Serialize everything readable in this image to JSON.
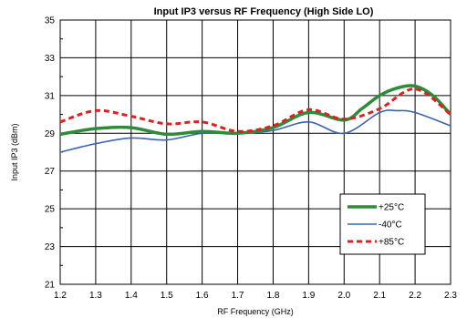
{
  "chart_data": {
    "type": "line",
    "title": "Input IP3 versus RF Frequency (High Side LO)",
    "xlabel": "RF Frequency (GHz)",
    "ylabel": "Input IP3 (dBm)",
    "xlim": [
      1.2,
      2.3
    ],
    "ylim": [
      21,
      35
    ],
    "xticks": [
      "1.2",
      "1.3",
      "1.4",
      "1.5",
      "1.6",
      "1.7",
      "1.8",
      "1.9",
      "2.0",
      "2.1",
      "2.2",
      "2.3"
    ],
    "yticks": [
      "21",
      "23",
      "25",
      "27",
      "29",
      "31",
      "33",
      "35"
    ],
    "grid": true,
    "legend_position": "bottom-right",
    "series": [
      {
        "name": "+25°C",
        "color": "#2e8b3a",
        "style": "solid",
        "x": [
          1.2,
          1.3,
          1.4,
          1.5,
          1.6,
          1.7,
          1.8,
          1.9,
          2.0,
          2.05,
          2.1,
          2.15,
          2.2,
          2.25,
          2.3
        ],
        "y": [
          28.95,
          29.25,
          29.3,
          28.95,
          29.1,
          29.0,
          29.3,
          30.1,
          29.7,
          30.3,
          31.0,
          31.4,
          31.5,
          31.0,
          30.0
        ]
      },
      {
        "name": "-40°C",
        "color": "#3b64b0",
        "style": "solid",
        "x": [
          1.2,
          1.3,
          1.4,
          1.5,
          1.6,
          1.7,
          1.8,
          1.9,
          2.0,
          2.1,
          2.15,
          2.2,
          2.3
        ],
        "y": [
          28.0,
          28.45,
          28.75,
          28.65,
          29.0,
          29.0,
          29.15,
          29.6,
          29.0,
          30.1,
          30.2,
          30.1,
          29.4
        ]
      },
      {
        "name": "+85°C",
        "color": "#e02020",
        "style": "dashed",
        "x": [
          1.2,
          1.3,
          1.4,
          1.5,
          1.6,
          1.7,
          1.8,
          1.9,
          2.0,
          2.1,
          2.2,
          2.3
        ],
        "y": [
          29.6,
          30.2,
          29.9,
          29.5,
          29.6,
          29.1,
          29.4,
          30.25,
          29.75,
          30.3,
          31.35,
          30.0
        ]
      }
    ]
  }
}
